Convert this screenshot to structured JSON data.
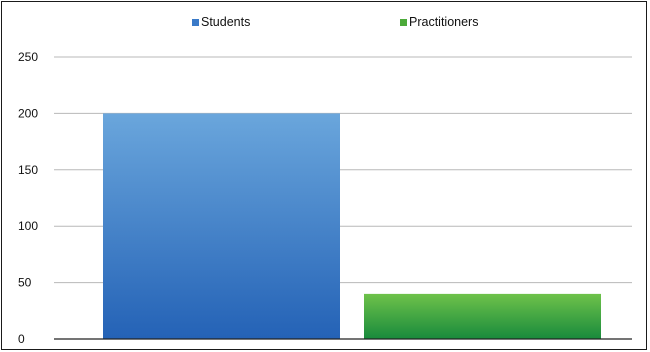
{
  "chart_data": {
    "type": "bar",
    "categories": [
      ""
    ],
    "series": [
      {
        "name": "Students",
        "values": [
          200
        ],
        "color": "#3a7ac8"
      },
      {
        "name": "Practitioners",
        "values": [
          40
        ],
        "color": "#4caa3a"
      }
    ],
    "title": "",
    "xlabel": "",
    "ylabel": "",
    "ylim": [
      0,
      250
    ],
    "yticks": [
      0,
      50,
      100,
      150,
      200,
      250
    ],
    "grid": true,
    "legend_position": "top"
  }
}
